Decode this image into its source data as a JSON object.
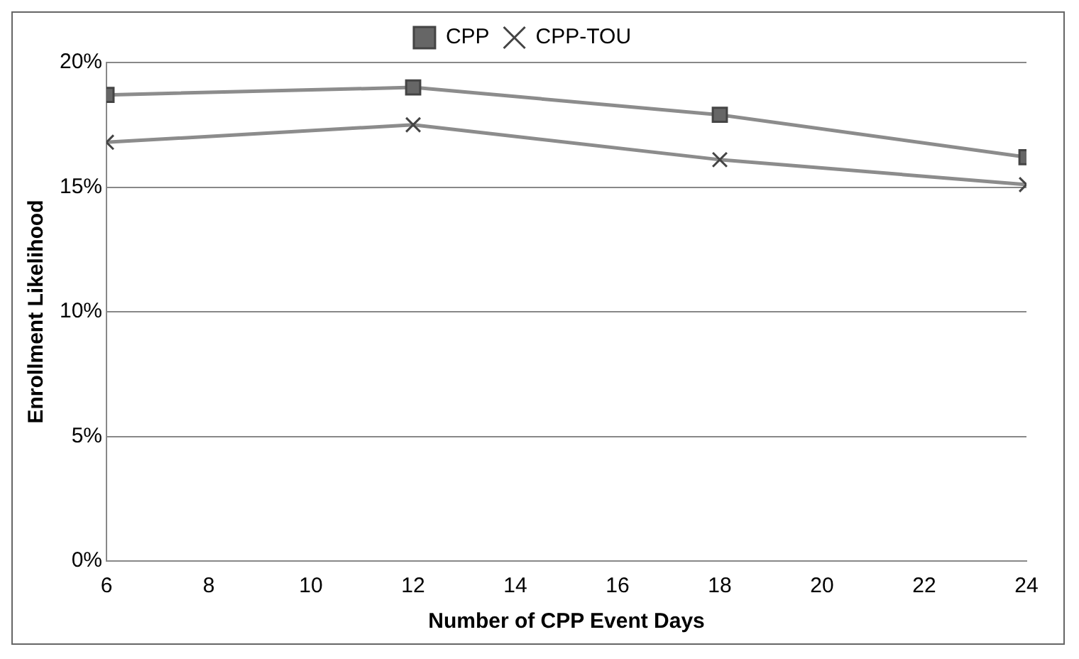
{
  "chart_data": {
    "type": "line",
    "xlabel": "Number of CPP Event Days",
    "ylabel": "Enrollment Likelihood",
    "x": [
      6,
      12,
      18,
      24
    ],
    "xlim": [
      6,
      24
    ],
    "xticks": [
      6,
      8,
      10,
      12,
      14,
      16,
      18,
      20,
      22,
      24
    ],
    "ylim": [
      0,
      20
    ],
    "yticks": [
      {
        "value": 0,
        "label": "0%"
      },
      {
        "value": 5,
        "label": "5%"
      },
      {
        "value": 10,
        "label": "10%"
      },
      {
        "value": 15,
        "label": "15%"
      },
      {
        "value": 20,
        "label": "20%"
      }
    ],
    "grid": "y",
    "legend": "top",
    "line_style": "solid",
    "series": [
      {
        "name": "CPP",
        "color": "#8c8c8c",
        "marker": "square",
        "values": [
          18.7,
          19.0,
          17.9,
          16.2
        ]
      },
      {
        "name": "CPP-TOU",
        "color": "#8c8c8c",
        "marker": "cross",
        "values": [
          16.8,
          17.5,
          16.1,
          15.1
        ]
      }
    ]
  }
}
